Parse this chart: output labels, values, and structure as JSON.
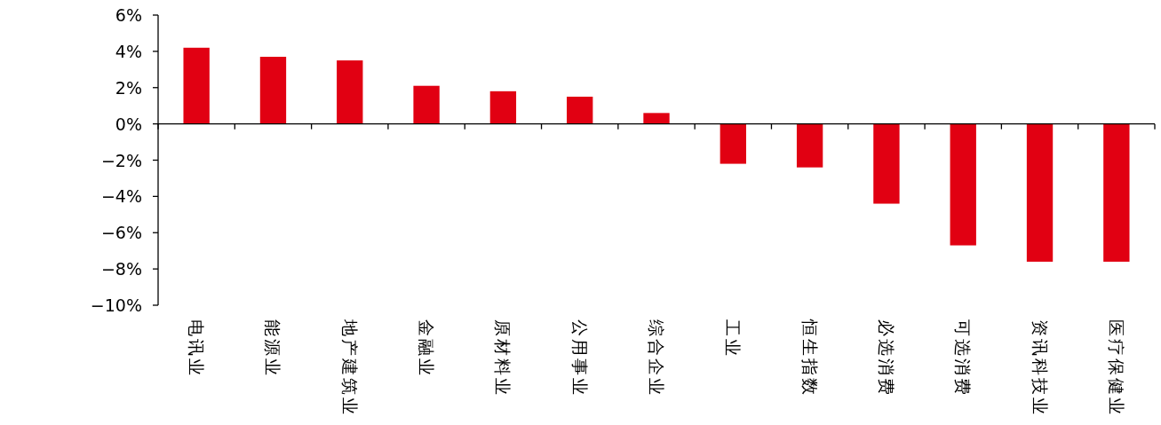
{
  "chart_data": {
    "type": "bar",
    "categories": [
      "电讯业",
      "能源业",
      "地产建筑业",
      "金融业",
      "原材料业",
      "公用事业",
      "综合企业",
      "工业",
      "恒生指数",
      "必选消费",
      "可选消费",
      "资讯科技业",
      "医疗保健业"
    ],
    "values": [
      4.2,
      3.7,
      3.5,
      2.1,
      1.8,
      1.5,
      0.6,
      -2.2,
      -2.4,
      -4.4,
      -6.7,
      -7.6,
      -7.6
    ],
    "color": "#e10012",
    "ylim": [
      -10,
      6
    ],
    "yticks": [
      {
        "value": -10,
        "label": "−10%"
      },
      {
        "value": -8,
        "label": "−8%"
      },
      {
        "value": -6,
        "label": "−6%"
      },
      {
        "value": -4,
        "label": "−4%"
      },
      {
        "value": -2,
        "label": "−2%"
      },
      {
        "value": 0,
        "label": "0%"
      },
      {
        "value": 2,
        "label": "2%"
      },
      {
        "value": 4,
        "label": "4%"
      },
      {
        "value": 6,
        "label": "6%"
      }
    ]
  }
}
